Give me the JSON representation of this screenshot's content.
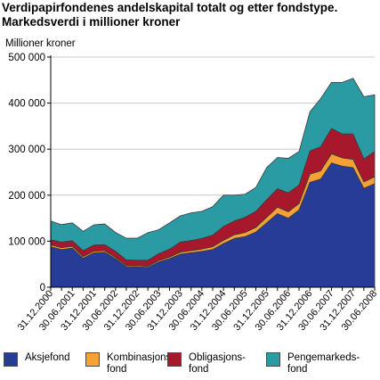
{
  "header": {
    "title": "Verdipapirfondenes andelskapital totalt og etter fondstype.",
    "subtitle": "Markedsverdi i millioner kroner"
  },
  "colors": {
    "aksjefond": "#273c96",
    "kombinasjonsfond": "#f6a133",
    "obligasjonsfond": "#a8182c",
    "pengemarkedsfond": "#2a9aa3",
    "grid": "#c9c9c9",
    "axis": "#000000",
    "outline": "#3c3c3c"
  },
  "chart_data": {
    "type": "area",
    "stacked": true,
    "ylabel": "Millioner kroner",
    "ylim": [
      0,
      500000
    ],
    "yticks": [
      0,
      100000,
      200000,
      300000,
      400000,
      500000
    ],
    "ytick_labels": [
      "0",
      "100 000",
      "200 000",
      "300 000",
      "400 000",
      "500 000"
    ],
    "grid": true,
    "legend_position": "bottom",
    "xtick_labels": [
      "31.12.2000",
      "30.06.2001",
      "31.12.2001",
      "30.06.2002",
      "31.12.2002",
      "30.06.2003",
      "31.12.2003",
      "30.06.2004",
      "31.12.2004",
      "30.06.2005",
      "31.12.2005",
      "30.06.2006",
      "31.12.2006",
      "30.06.2007",
      "31.12.2007",
      "30.06.2008"
    ],
    "x": [
      "31.12.2000",
      "31.03.2001",
      "30.06.2001",
      "30.09.2001",
      "31.12.2001",
      "31.03.2002",
      "30.06.2002",
      "30.09.2002",
      "31.12.2002",
      "31.03.2003",
      "30.06.2003",
      "30.09.2003",
      "31.12.2003",
      "31.03.2004",
      "30.06.2004",
      "30.09.2004",
      "31.12.2004",
      "31.03.2005",
      "30.06.2005",
      "30.09.2005",
      "31.12.2005",
      "31.03.2006",
      "30.06.2006",
      "30.09.2006",
      "31.12.2006",
      "31.03.2007",
      "30.06.2007",
      "30.09.2007",
      "31.12.2007",
      "31.03.2008",
      "30.06.2008"
    ],
    "series": [
      {
        "name": "Aksjefond",
        "key": "aksjefond",
        "values": [
          88000,
          82000,
          85000,
          63000,
          75000,
          76000,
          62000,
          45000,
          44000,
          43000,
          55000,
          62000,
          72000,
          75000,
          78000,
          82000,
          95000,
          106000,
          110000,
          120000,
          140000,
          160000,
          150000,
          168000,
          228000,
          235000,
          270000,
          263000,
          260000,
          215000,
          225000
        ]
      },
      {
        "name": "Kombinasjons-\nfond",
        "key": "kombinasjonsfond",
        "values": [
          4000,
          4000,
          4000,
          3500,
          3500,
          3500,
          3000,
          2500,
          2500,
          2500,
          3000,
          3500,
          4000,
          4500,
          5000,
          6000,
          7000,
          8000,
          9000,
          10000,
          12000,
          14000,
          14000,
          14000,
          18000,
          18000,
          20000,
          18000,
          18000,
          14000,
          15000
        ]
      },
      {
        "name": "Obligasjons-\nfond",
        "key": "obligasjonsfond",
        "values": [
          11000,
          12000,
          12000,
          13000,
          13000,
          13000,
          13000,
          12000,
          12000,
          13000,
          15000,
          17000,
          22000,
          22000,
          23000,
          25000,
          30000,
          30000,
          33000,
          35000,
          38000,
          40000,
          41000,
          40000,
          50000,
          52000,
          55000,
          52000,
          55000,
          50000,
          55000
        ]
      },
      {
        "name": "Pengemarkeds-\nfond",
        "key": "pengemarkedsfond",
        "values": [
          41000,
          38000,
          39000,
          42000,
          44000,
          45000,
          41000,
          47000,
          48000,
          60000,
          52000,
          57000,
          57000,
          60000,
          59000,
          62000,
          68000,
          56000,
          50000,
          52000,
          70000,
          68000,
          75000,
          73000,
          85000,
          105000,
          100000,
          112000,
          121000,
          135000,
          123000
        ]
      }
    ]
  }
}
